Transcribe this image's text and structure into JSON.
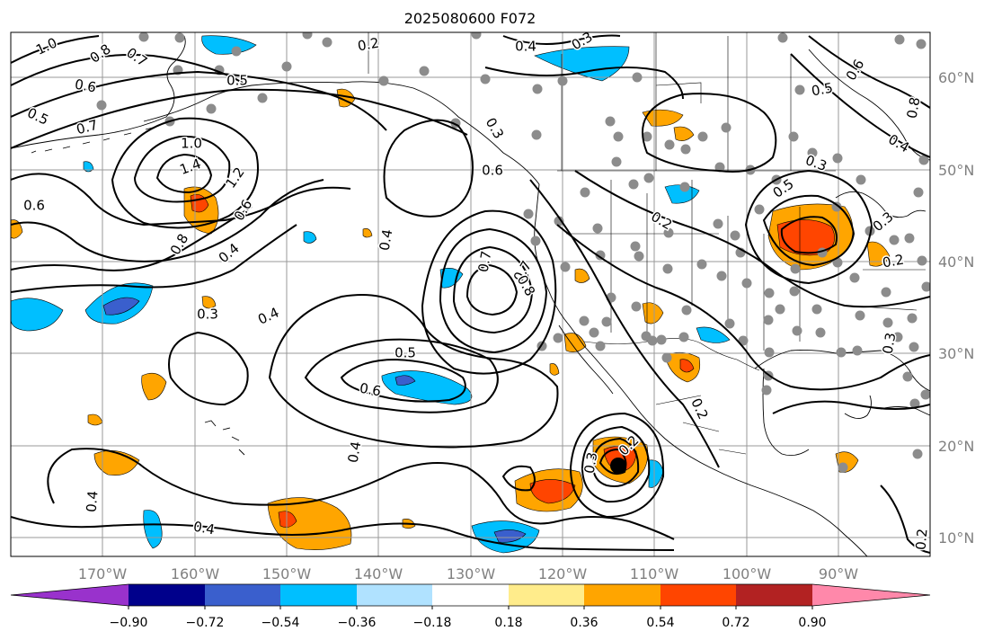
{
  "title": "2025080600 F072",
  "map": {
    "lon_ticks": [
      "170°W",
      "160°W",
      "150°W",
      "140°W",
      "130°W",
      "120°W",
      "110°W",
      "100°W",
      "90°W"
    ],
    "lat_ticks": [
      "60°N",
      "50°N",
      "40°N",
      "30°N",
      "20°N",
      "10°N"
    ],
    "lon_range": [
      -180,
      -80
    ],
    "lat_range": [
      8,
      65
    ],
    "grid": true
  },
  "contour_labels": [
    "1.0",
    "0.8",
    "0.7",
    "0.6",
    "0.5",
    "0.7",
    "1.0",
    "1.4",
    "1.2",
    "0.6",
    "0.6",
    "0.8",
    "0.4",
    "0.3",
    "0.4",
    "0.2",
    "0.4",
    "0.5",
    "0.3",
    "0.7",
    "0.6",
    "0.4",
    "0.7",
    "0.8",
    "0.5",
    "0.6",
    "0.4",
    "0.3",
    "0.2",
    "0.4",
    "0.4",
    "0.3",
    "0.2",
    "0.2",
    "0.6",
    "0.5",
    "0.8",
    "0.4",
    "0.3",
    "0.5",
    "0.3",
    "0.2",
    "0.3",
    "0.2"
  ],
  "colorbar": {
    "ticks": [
      "−0.90",
      "−0.72",
      "−0.54",
      "−0.36",
      "−0.18",
      "0.18",
      "0.36",
      "0.54",
      "0.72",
      "0.90"
    ],
    "colors": [
      "#9932cc",
      "#00008b",
      "#3a5fcd",
      "#00bfff",
      "#b0e2ff",
      "#ffffff",
      "#ffec8b",
      "#ffa500",
      "#ff4500",
      "#b22222",
      "#ff88aa"
    ]
  }
}
